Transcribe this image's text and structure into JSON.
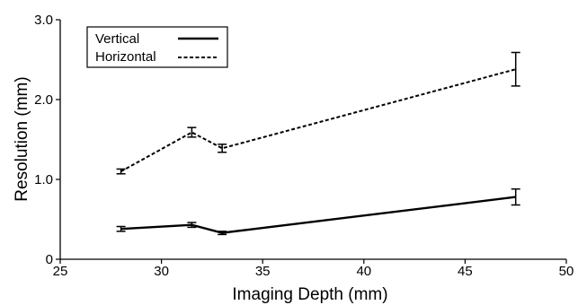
{
  "chart_data": {
    "type": "line",
    "title": "",
    "xlabel": "Imaging Depth (mm)",
    "ylabel": "Resolution (mm)",
    "xlim": [
      25,
      50
    ],
    "ylim": [
      0,
      3.0
    ],
    "x_ticks": [
      25,
      30,
      35,
      40,
      45,
      50
    ],
    "x_tick_labels": [
      "25",
      "30",
      "35",
      "40",
      "45",
      "50"
    ],
    "y_ticks": [
      0,
      1.0,
      2.0,
      3.0
    ],
    "y_tick_labels": [
      "0",
      "1.0",
      "2.0",
      "3.0"
    ],
    "grid": false,
    "legend_position": "top-left",
    "x": [
      28,
      31.5,
      33,
      47.5
    ],
    "series": [
      {
        "name": "Vertical",
        "style": "solid",
        "color": "#000000",
        "values": [
          0.38,
          0.43,
          0.33,
          0.78
        ],
        "error": [
          0.03,
          0.03,
          0.02,
          0.1
        ]
      },
      {
        "name": "Horizontal",
        "style": "dashed",
        "color": "#000000",
        "values": [
          1.1,
          1.59,
          1.39,
          2.38
        ],
        "error": [
          0.03,
          0.06,
          0.05,
          0.21
        ]
      }
    ]
  }
}
